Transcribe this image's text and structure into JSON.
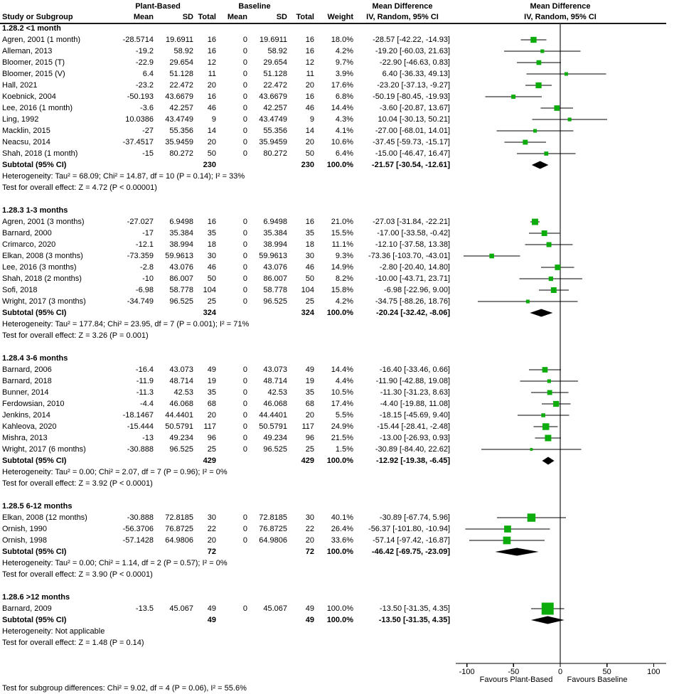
{
  "chart_data": {
    "type": "forest",
    "header": {
      "study_col": "Study or Subgroup",
      "group1": "Plant-Based",
      "group2": "Baseline",
      "col_mean": "Mean",
      "col_sd": "SD",
      "col_total": "Total",
      "col_weight": "Weight",
      "md_title": "Mean Difference",
      "md_sub": "IV, Random, 95% CI"
    },
    "colors": {
      "marker": "#0CAC0C",
      "diamond": "#000000",
      "line": "#000000"
    },
    "axis": {
      "ticks": [
        -100,
        -50,
        0,
        50,
        100
      ],
      "range": [
        -113,
        113
      ],
      "favours_left": "Favours Plant-Based",
      "favours_right": "Favours Baseline"
    },
    "footer": "Test for subgroup differences: Chi² = 9.02, df = 4 (P = 0.06), I² = 55.6%",
    "sections": [
      {
        "label": "1.28.2 <1 month",
        "studies": [
          {
            "name": "Agren, 2001 (1 month)",
            "pb_mean": "-28.5714",
            "pb_sd": "19.6911",
            "pb_total": "16",
            "b_mean": "0",
            "b_sd": "19.6911",
            "b_total": "16",
            "weight": "18.0%",
            "ci": "-28.57 [-42.22, -14.93]",
            "md": -28.57,
            "lo": -42.22,
            "hi": -14.93
          },
          {
            "name": "Alleman, 2013",
            "pb_mean": "-19.2",
            "pb_sd": "58.92",
            "pb_total": "16",
            "b_mean": "0",
            "b_sd": "58.92",
            "b_total": "16",
            "weight": "4.2%",
            "ci": "-19.20 [-60.03, 21.63]",
            "md": -19.2,
            "lo": -60.03,
            "hi": 21.63
          },
          {
            "name": "Bloomer, 2015 (T)",
            "pb_mean": "-22.9",
            "pb_sd": "29.654",
            "pb_total": "12",
            "b_mean": "0",
            "b_sd": "29.654",
            "b_total": "12",
            "weight": "9.7%",
            "ci": "-22.90 [-46.63, 0.83]",
            "md": -22.9,
            "lo": -46.63,
            "hi": 0.83
          },
          {
            "name": "Bloomer, 2015 (V)",
            "pb_mean": "6.4",
            "pb_sd": "51.128",
            "pb_total": "11",
            "b_mean": "0",
            "b_sd": "51.128",
            "b_total": "11",
            "weight": "3.9%",
            "ci": "6.40 [-36.33, 49.13]",
            "md": 6.4,
            "lo": -36.33,
            "hi": 49.13
          },
          {
            "name": "Hall, 2021",
            "pb_mean": "-23.2",
            "pb_sd": "22.472",
            "pb_total": "20",
            "b_mean": "0",
            "b_sd": "22.472",
            "b_total": "20",
            "weight": "17.6%",
            "ci": "-23.20 [-37.13, -9.27]",
            "md": -23.2,
            "lo": -37.13,
            "hi": -9.27
          },
          {
            "name": "Koebnick, 2004",
            "pb_mean": "-50.193",
            "pb_sd": "43.6679",
            "pb_total": "16",
            "b_mean": "0",
            "b_sd": "43.6679",
            "b_total": "16",
            "weight": "6.8%",
            "ci": "-50.19 [-80.45, -19.93]",
            "md": -50.19,
            "lo": -80.45,
            "hi": -19.93
          },
          {
            "name": "Lee, 2016 (1 month)",
            "pb_mean": "-3.6",
            "pb_sd": "42.257",
            "pb_total": "46",
            "b_mean": "0",
            "b_sd": "42.257",
            "b_total": "46",
            "weight": "14.4%",
            "ci": "-3.60 [-20.87, 13.67]",
            "md": -3.6,
            "lo": -20.87,
            "hi": 13.67
          },
          {
            "name": "Ling, 1992",
            "pb_mean": "10.0386",
            "pb_sd": "43.4749",
            "pb_total": "9",
            "b_mean": "0",
            "b_sd": "43.4749",
            "b_total": "9",
            "weight": "4.3%",
            "ci": "10.04 [-30.13, 50.21]",
            "md": 10.04,
            "lo": -30.13,
            "hi": 50.21
          },
          {
            "name": "Macklin, 2015",
            "pb_mean": "-27",
            "pb_sd": "55.356",
            "pb_total": "14",
            "b_mean": "0",
            "b_sd": "55.356",
            "b_total": "14",
            "weight": "4.1%",
            "ci": "-27.00 [-68.01, 14.01]",
            "md": -27.0,
            "lo": -68.01,
            "hi": 14.01
          },
          {
            "name": "Neacsu, 2014",
            "pb_mean": "-37.4517",
            "pb_sd": "35.9459",
            "pb_total": "20",
            "b_mean": "0",
            "b_sd": "35.9459",
            "b_total": "20",
            "weight": "10.6%",
            "ci": "-37.45 [-59.73, -15.17]",
            "md": -37.45,
            "lo": -59.73,
            "hi": -15.17
          },
          {
            "name": "Shah, 2018 (1 month)",
            "pb_mean": "-15",
            "pb_sd": "80.272",
            "pb_total": "50",
            "b_mean": "0",
            "b_sd": "80.272",
            "b_total": "50",
            "weight": "6.4%",
            "ci": "-15.00 [-46.47, 16.47]",
            "md": -15.0,
            "lo": -46.47,
            "hi": 16.47
          }
        ],
        "subtotal": {
          "label": "Subtotal (95% CI)",
          "pb_total": "230",
          "b_total": "230",
          "weight": "100.0%",
          "ci": "-21.57 [-30.54, -12.61]",
          "md": -21.57,
          "lo": -30.54,
          "hi": -12.61
        },
        "heterogeneity": "Heterogeneity: Tau² = 68.09; Chi² = 14.87, df = 10 (P = 0.14); I² = 33%",
        "test": "Test for overall effect: Z = 4.72 (P < 0.00001)"
      },
      {
        "label": "1.28.3 1-3 months",
        "studies": [
          {
            "name": "Agren, 2001 (3 months)",
            "pb_mean": "-27.027",
            "pb_sd": "6.9498",
            "pb_total": "16",
            "b_mean": "0",
            "b_sd": "6.9498",
            "b_total": "16",
            "weight": "21.0%",
            "ci": "-27.03 [-31.84, -22.21]",
            "md": -27.03,
            "lo": -31.84,
            "hi": -22.21
          },
          {
            "name": "Barnard, 2000",
            "pb_mean": "-17",
            "pb_sd": "35.384",
            "pb_total": "35",
            "b_mean": "0",
            "b_sd": "35.384",
            "b_total": "35",
            "weight": "15.5%",
            "ci": "-17.00 [-33.58, -0.42]",
            "md": -17.0,
            "lo": -33.58,
            "hi": -0.42
          },
          {
            "name": "Crimarco, 2020",
            "pb_mean": "-12.1",
            "pb_sd": "38.994",
            "pb_total": "18",
            "b_mean": "0",
            "b_sd": "38.994",
            "b_total": "18",
            "weight": "11.1%",
            "ci": "-12.10 [-37.58, 13.38]",
            "md": -12.1,
            "lo": -37.58,
            "hi": 13.38
          },
          {
            "name": "Elkan, 2008 (3 months)",
            "pb_mean": "-73.359",
            "pb_sd": "59.9613",
            "pb_total": "30",
            "b_mean": "0",
            "b_sd": "59.9613",
            "b_total": "30",
            "weight": "9.3%",
            "ci": "-73.36 [-103.70, -43.01]",
            "md": -73.36,
            "lo": -103.7,
            "hi": -43.01
          },
          {
            "name": "Lee, 2016 (3 months)",
            "pb_mean": "-2.8",
            "pb_sd": "43.076",
            "pb_total": "46",
            "b_mean": "0",
            "b_sd": "43.076",
            "b_total": "46",
            "weight": "14.9%",
            "ci": "-2.80 [-20.40, 14.80]",
            "md": -2.8,
            "lo": -20.4,
            "hi": 14.8
          },
          {
            "name": "Shah, 2018 (2 months)",
            "pb_mean": "-10",
            "pb_sd": "86.007",
            "pb_total": "50",
            "b_mean": "0",
            "b_sd": "86.007",
            "b_total": "50",
            "weight": "8.2%",
            "ci": "-10.00 [-43.71, 23.71]",
            "md": -10.0,
            "lo": -43.71,
            "hi": 23.71
          },
          {
            "name": "Sofi, 2018",
            "pb_mean": "-6.98",
            "pb_sd": "58.778",
            "pb_total": "104",
            "b_mean": "0",
            "b_sd": "58.778",
            "b_total": "104",
            "weight": "15.8%",
            "ci": "-6.98 [-22.96, 9.00]",
            "md": -6.98,
            "lo": -22.96,
            "hi": 9.0
          },
          {
            "name": "Wright, 2017 (3 months)",
            "pb_mean": "-34.749",
            "pb_sd": "96.525",
            "pb_total": "25",
            "b_mean": "0",
            "b_sd": "96.525",
            "b_total": "25",
            "weight": "4.2%",
            "ci": "-34.75 [-88.26, 18.76]",
            "md": -34.75,
            "lo": -88.26,
            "hi": 18.76
          }
        ],
        "subtotal": {
          "label": "Subtotal (95% CI)",
          "pb_total": "324",
          "b_total": "324",
          "weight": "100.0%",
          "ci": "-20.24 [-32.42, -8.06]",
          "md": -20.24,
          "lo": -32.42,
          "hi": -8.06
        },
        "heterogeneity": "Heterogeneity: Tau² = 177.84; Chi² = 23.95, df = 7 (P = 0.001); I² = 71%",
        "test": "Test for overall effect: Z = 3.26 (P = 0.001)"
      },
      {
        "label": "1.28.4 3-6 months",
        "studies": [
          {
            "name": "Barnard, 2006",
            "pb_mean": "-16.4",
            "pb_sd": "43.073",
            "pb_total": "49",
            "b_mean": "0",
            "b_sd": "43.073",
            "b_total": "49",
            "weight": "14.4%",
            "ci": "-16.40 [-33.46, 0.66]",
            "md": -16.4,
            "lo": -33.46,
            "hi": 0.66
          },
          {
            "name": "Barnard, 2018",
            "pb_mean": "-11.9",
            "pb_sd": "48.714",
            "pb_total": "19",
            "b_mean": "0",
            "b_sd": "48.714",
            "b_total": "19",
            "weight": "4.4%",
            "ci": "-11.90 [-42.88, 19.08]",
            "md": -11.9,
            "lo": -42.88,
            "hi": 19.08
          },
          {
            "name": "Bunner, 2014",
            "pb_mean": "-11.3",
            "pb_sd": "42.53",
            "pb_total": "35",
            "b_mean": "0",
            "b_sd": "42.53",
            "b_total": "35",
            "weight": "10.5%",
            "ci": "-11.30 [-31.23, 8.63]",
            "md": -11.3,
            "lo": -31.23,
            "hi": 8.63
          },
          {
            "name": "Ferdowsian, 2010",
            "pb_mean": "-4.4",
            "pb_sd": "46.068",
            "pb_total": "68",
            "b_mean": "0",
            "b_sd": "46.068",
            "b_total": "68",
            "weight": "17.4%",
            "ci": "-4.40 [-19.88, 11.08]",
            "md": -4.4,
            "lo": -19.88,
            "hi": 11.08
          },
          {
            "name": "Jenkins, 2014",
            "pb_mean": "-18.1467",
            "pb_sd": "44.4401",
            "pb_total": "20",
            "b_mean": "0",
            "b_sd": "44.4401",
            "b_total": "20",
            "weight": "5.5%",
            "ci": "-18.15 [-45.69, 9.40]",
            "md": -18.15,
            "lo": -45.69,
            "hi": 9.4
          },
          {
            "name": "Kahleova, 2020",
            "pb_mean": "-15.444",
            "pb_sd": "50.5791",
            "pb_total": "117",
            "b_mean": "0",
            "b_sd": "50.5791",
            "b_total": "117",
            "weight": "24.9%",
            "ci": "-15.44 [-28.41, -2.48]",
            "md": -15.44,
            "lo": -28.41,
            "hi": -2.48
          },
          {
            "name": "Mishra, 2013",
            "pb_mean": "-13",
            "pb_sd": "49.234",
            "pb_total": "96",
            "b_mean": "0",
            "b_sd": "49.234",
            "b_total": "96",
            "weight": "21.5%",
            "ci": "-13.00 [-26.93, 0.93]",
            "md": -13.0,
            "lo": -26.93,
            "hi": 0.93
          },
          {
            "name": "Wright, 2017 (6 months)",
            "pb_mean": "-30.888",
            "pb_sd": "96.525",
            "pb_total": "25",
            "b_mean": "0",
            "b_sd": "96.525",
            "b_total": "25",
            "weight": "1.5%",
            "ci": "-30.89 [-84.40, 22.62]",
            "md": -30.89,
            "lo": -84.4,
            "hi": 22.62
          }
        ],
        "subtotal": {
          "label": "Subtotal (95% CI)",
          "pb_total": "429",
          "b_total": "429",
          "weight": "100.0%",
          "ci": "-12.92 [-19.38, -6.45]",
          "md": -12.92,
          "lo": -19.38,
          "hi": -6.45
        },
        "heterogeneity": "Heterogeneity: Tau² = 0.00; Chi² = 2.07, df = 7 (P = 0.96); I² = 0%",
        "test": "Test for overall effect: Z = 3.92 (P < 0.0001)"
      },
      {
        "label": "1.28.5 6-12 months",
        "studies": [
          {
            "name": "Elkan, 2008 (12 months)",
            "pb_mean": "-30.888",
            "pb_sd": "72.8185",
            "pb_total": "30",
            "b_mean": "0",
            "b_sd": "72.8185",
            "b_total": "30",
            "weight": "40.1%",
            "ci": "-30.89 [-67.74, 5.96]",
            "md": -30.89,
            "lo": -67.74,
            "hi": 5.96
          },
          {
            "name": "Ornish, 1990",
            "pb_mean": "-56.3706",
            "pb_sd": "76.8725",
            "pb_total": "22",
            "b_mean": "0",
            "b_sd": "76.8725",
            "b_total": "22",
            "weight": "26.4%",
            "ci": "-56.37 [-101.80, -10.94]",
            "md": -56.37,
            "lo": -101.8,
            "hi": -10.94
          },
          {
            "name": "Ornish, 1998",
            "pb_mean": "-57.1428",
            "pb_sd": "64.9806",
            "pb_total": "20",
            "b_mean": "0",
            "b_sd": "64.9806",
            "b_total": "20",
            "weight": "33.6%",
            "ci": "-57.14 [-97.42, -16.87]",
            "md": -57.14,
            "lo": -97.42,
            "hi": -16.87
          }
        ],
        "subtotal": {
          "label": "Subtotal (95% CI)",
          "pb_total": "72",
          "b_total": "72",
          "weight": "100.0%",
          "ci": "-46.42 [-69.75, -23.09]",
          "md": -46.42,
          "lo": -69.75,
          "hi": -23.09
        },
        "heterogeneity": "Heterogeneity: Tau² = 0.00; Chi² = 1.14, df = 2 (P = 0.57); I² = 0%",
        "test": "Test for overall effect: Z = 3.90 (P < 0.0001)"
      },
      {
        "label": "1.28.6 >12 months",
        "studies": [
          {
            "name": "Barnard, 2009",
            "pb_mean": "-13.5",
            "pb_sd": "45.067",
            "pb_total": "49",
            "b_mean": "0",
            "b_sd": "45.067",
            "b_total": "49",
            "weight": "100.0%",
            "ci": "-13.50 [-31.35, 4.35]",
            "md": -13.5,
            "lo": -31.35,
            "hi": 4.35
          }
        ],
        "subtotal": {
          "label": "Subtotal (95% CI)",
          "pb_total": "49",
          "b_total": "49",
          "weight": "100.0%",
          "ci": "-13.50 [-31.35, 4.35]",
          "md": -13.5,
          "lo": -31.35,
          "hi": 4.35
        },
        "heterogeneity": "Heterogeneity: Not applicable",
        "test": "Test for overall effect: Z = 1.48 (P = 0.14)"
      }
    ]
  }
}
